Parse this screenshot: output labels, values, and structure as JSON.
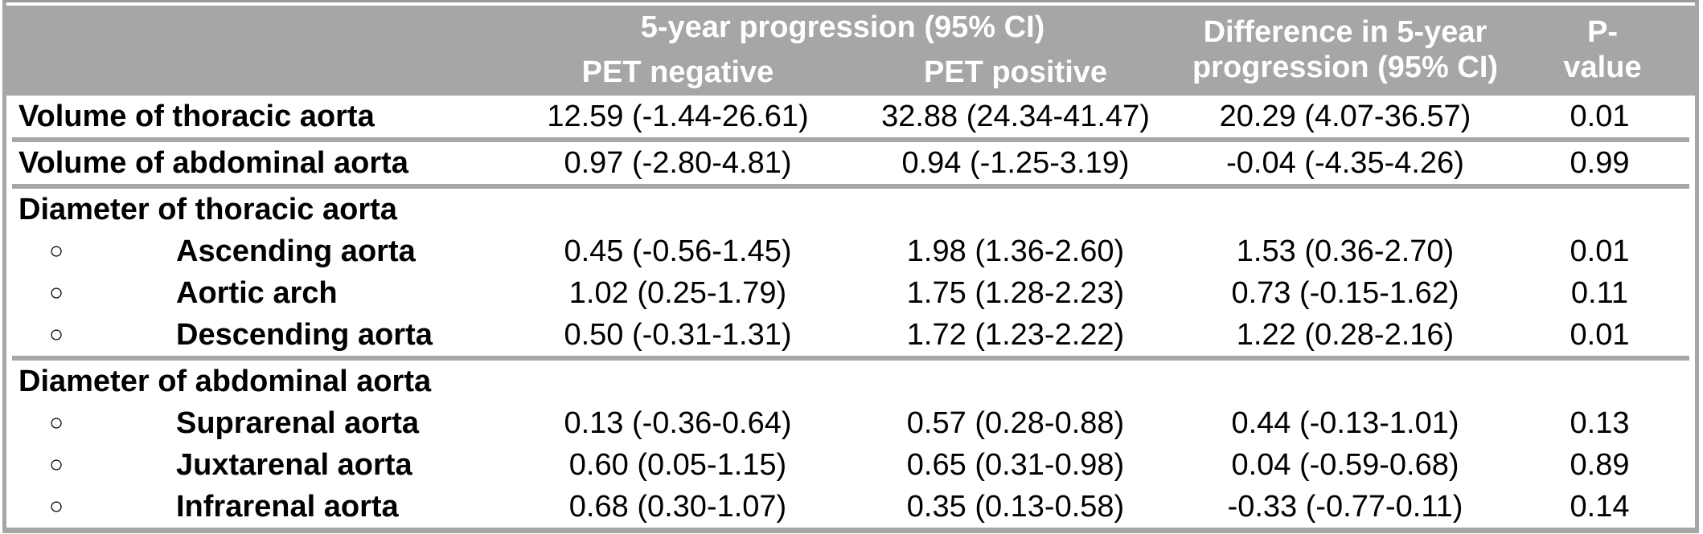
{
  "colors": {
    "header_bg": "#a6a6a6",
    "border": "#a6a6a6",
    "header_text": "#ffffff",
    "body_text": "#000000"
  },
  "table": {
    "bullet_glyph": "○",
    "header": {
      "group_label": "5-year progression (95% CI)",
      "pet_negative": "PET negative",
      "pet_positive": "PET positive",
      "difference": "Difference in 5-year progression (95% CI)",
      "difference_lines": [
        "Difference in 5-year",
        "progression (95% CI)"
      ],
      "p_value": "P-value",
      "p_value_lines": [
        "P-",
        "value"
      ]
    },
    "rows": [
      {
        "type": "data",
        "label": "Volume of thoracic aorta",
        "pet_negative": "12.59 (-1.44-26.61)",
        "pet_positive": "32.88 (24.34-41.47)",
        "difference": "20.29 (4.07-36.57)",
        "p_value": "0.01"
      },
      {
        "type": "data",
        "label": "Volume of abdominal aorta",
        "pet_negative": "0.97 (-2.80-4.81)",
        "pet_positive": "0.94 (-1.25-3.19)",
        "difference": "-0.04 (-4.35-4.26)",
        "p_value": "0.99"
      },
      {
        "type": "section",
        "label": "Diameter of thoracic aorta",
        "pet_negative": "",
        "pet_positive": "",
        "difference": "",
        "p_value": ""
      },
      {
        "type": "sub",
        "label": "Ascending aorta",
        "pet_negative": "0.45 (-0.56-1.45)",
        "pet_positive": "1.98 (1.36-2.60)",
        "difference": "1.53 (0.36-2.70)",
        "p_value": "0.01"
      },
      {
        "type": "sub",
        "label": "Aortic arch",
        "pet_negative": "1.02 (0.25-1.79)",
        "pet_positive": "1.75 (1.28-2.23)",
        "difference": "0.73 (-0.15-1.62)",
        "p_value": "0.11"
      },
      {
        "type": "sub",
        "label": "Descending aorta",
        "pet_negative": "0.50 (-0.31-1.31)",
        "pet_positive": "1.72 (1.23-2.22)",
        "difference": "1.22 (0.28-2.16)",
        "p_value": "0.01"
      },
      {
        "type": "section",
        "label": "Diameter of abdominal aorta",
        "pet_negative": "",
        "pet_positive": "",
        "difference": "",
        "p_value": ""
      },
      {
        "type": "sub",
        "label": "Suprarenal aorta",
        "pet_negative": "0.13 (-0.36-0.64)",
        "pet_positive": "0.57 (0.28-0.88)",
        "difference": "0.44 (-0.13-1.01)",
        "p_value": "0.13"
      },
      {
        "type": "sub",
        "label": "Juxtarenal aorta",
        "pet_negative": "0.60 (0.05-1.15)",
        "pet_positive": "0.65 (0.31-0.98)",
        "difference": "0.04 (-0.59-0.68)",
        "p_value": "0.89"
      },
      {
        "type": "sub",
        "label": "Infrarenal aorta",
        "pet_negative": "0.68 (0.30-1.07)",
        "pet_positive": "0.35 (0.13-0.58)",
        "difference": "-0.33 (-0.77-0.11)",
        "p_value": "0.14"
      }
    ]
  }
}
